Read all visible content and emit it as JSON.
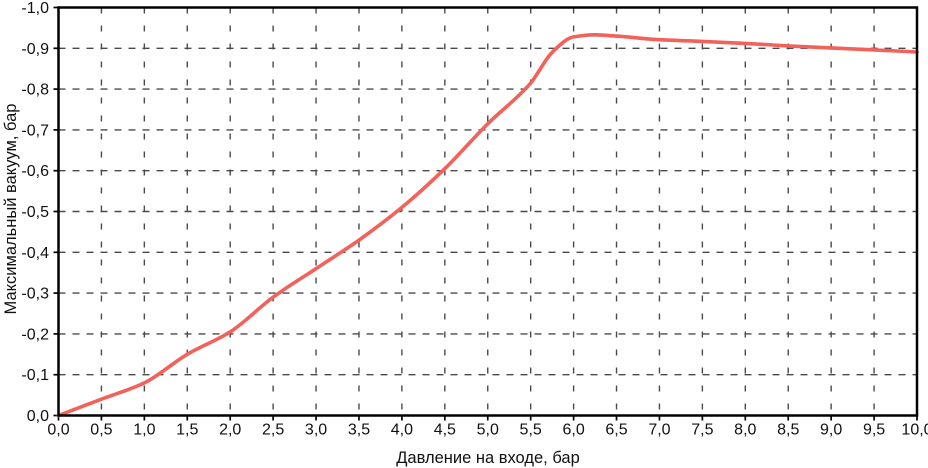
{
  "page": {
    "background": "#ffffff",
    "text_color": "#111111"
  },
  "chart_data": {
    "type": "line",
    "title": "",
    "xlabel": "Давление на входе, бар",
    "ylabel": "Максимальный вакуум, бар",
    "xlim": [
      0,
      10
    ],
    "ylim": [
      0,
      -1.0
    ],
    "x_ticks": [
      0,
      0.5,
      1.0,
      1.5,
      2.0,
      2.5,
      3.0,
      3.5,
      4.0,
      4.5,
      5.0,
      5.5,
      6.0,
      6.5,
      7.0,
      7.5,
      8.0,
      8.5,
      9.0,
      9.5,
      10.0
    ],
    "y_ticks": [
      0,
      -0.1,
      -0.2,
      -0.3,
      -0.4,
      -0.5,
      -0.6,
      -0.7,
      -0.8,
      -0.9,
      -1.0
    ],
    "decimal_separator": ",",
    "grid": {
      "visible": true,
      "style": "dashed",
      "color": "#4a4a4a"
    },
    "frame_color": "#000000",
    "legend": "none",
    "series": [
      {
        "name": "Максимальный вакуум",
        "color": "#f2615a",
        "x": [
          0,
          0.5,
          1.0,
          1.5,
          2.0,
          2.5,
          3.0,
          3.5,
          4.0,
          4.5,
          5.0,
          5.5,
          5.75,
          6.0,
          6.25,
          6.5,
          7.0,
          7.5,
          8.0,
          8.5,
          9.0,
          9.5,
          10.0
        ],
        "y": [
          0,
          -0.04,
          -0.08,
          -0.15,
          -0.205,
          -0.29,
          -0.36,
          -0.43,
          -0.51,
          -0.605,
          -0.715,
          -0.815,
          -0.89,
          -0.928,
          -0.933,
          -0.93,
          -0.921,
          -0.917,
          -0.912,
          -0.906,
          -0.901,
          -0.896,
          -0.891
        ]
      }
    ]
  }
}
